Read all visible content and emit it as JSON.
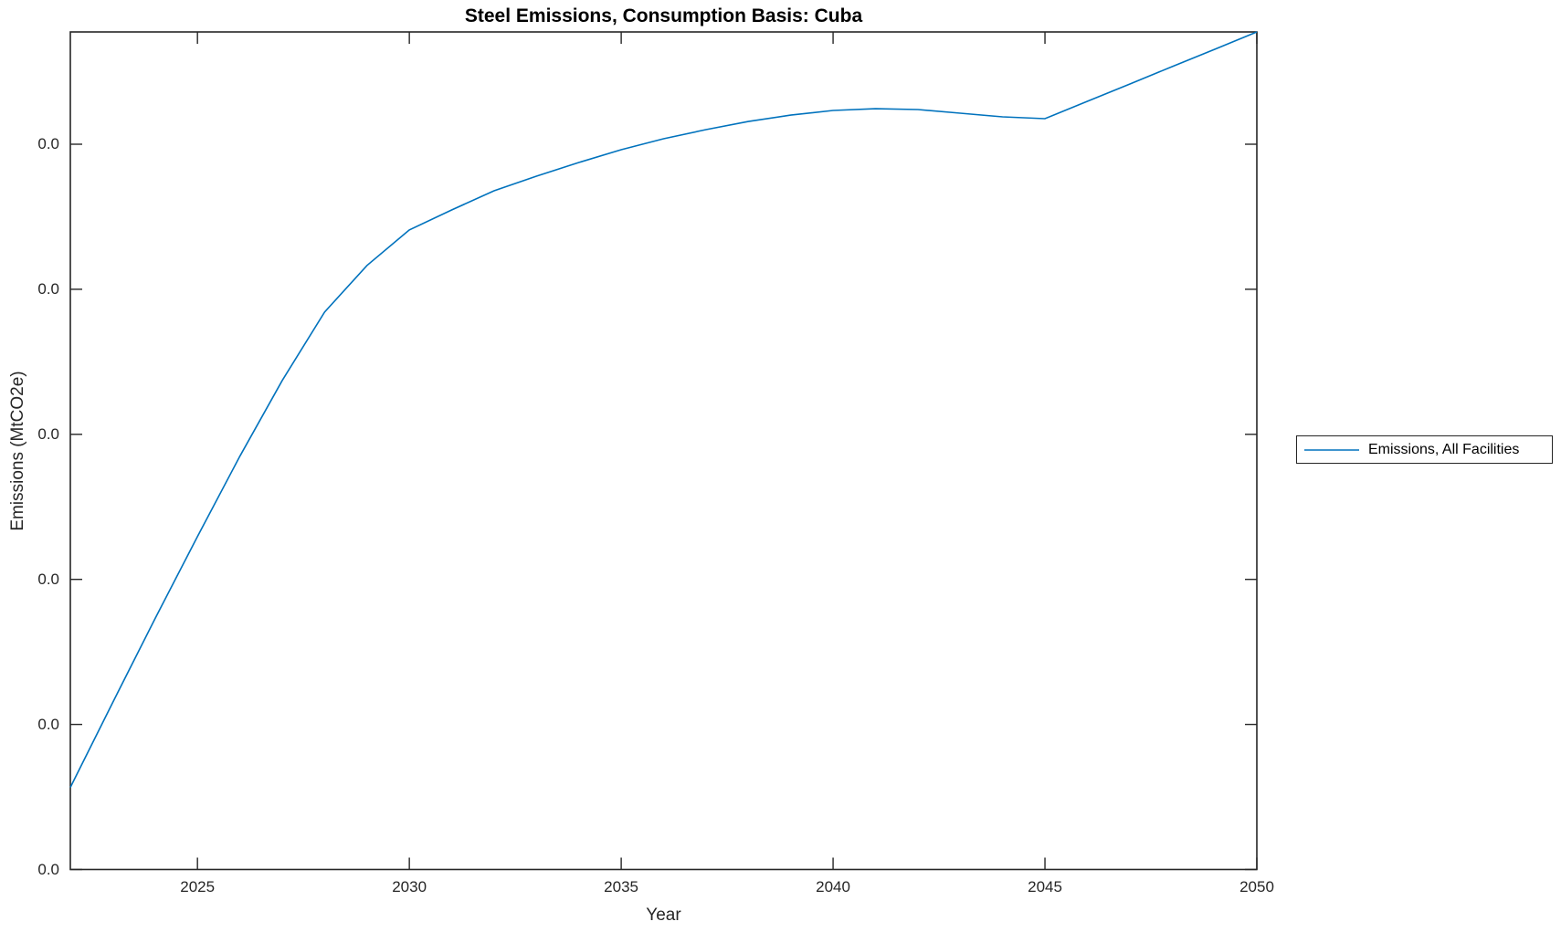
{
  "chart_data": {
    "type": "line",
    "title": "Steel Emissions, Consumption Basis: Cuba",
    "xlabel": "Year",
    "ylabel": "Emissions (MtCO2e)",
    "xlim": [
      2022,
      2050
    ],
    "ylim_units": [
      0,
      5.774
    ],
    "grid": false,
    "units_note": "relative axis units; every y tick label displays 0.0",
    "x_ticks": {
      "values": [
        2025,
        2030,
        2035,
        2040,
        2045,
        2050
      ],
      "labels": [
        "2025",
        "2030",
        "2035",
        "2040",
        "2045",
        "2050"
      ]
    },
    "y_ticks": {
      "positions_units": [
        0,
        1,
        2,
        3,
        4,
        5
      ],
      "labels": [
        "0.0",
        "0.0",
        "0.0",
        "0.0",
        "0.0",
        "0.0"
      ]
    },
    "legend": {
      "position": "right-outside",
      "entries": [
        {
          "label": "Emissions, All Facilities",
          "color": "#0072BD"
        }
      ]
    },
    "series": [
      {
        "name": "Emissions, All Facilities",
        "color": "#0072BD",
        "x": [
          2022,
          2023,
          2024,
          2025,
          2026,
          2027,
          2028,
          2029,
          2030,
          2031,
          2032,
          2033,
          2034,
          2035,
          2036,
          2037,
          2038,
          2039,
          2040,
          2041,
          2042,
          2043,
          2044,
          2045,
          2046,
          2047,
          2048,
          2049,
          2050
        ],
        "y_units": [
          0.566,
          1.151,
          1.73,
          2.296,
          2.849,
          3.371,
          3.843,
          4.164,
          4.409,
          4.547,
          4.679,
          4.78,
          4.874,
          4.962,
          5.038,
          5.101,
          5.157,
          5.201,
          5.233,
          5.245,
          5.239,
          5.214,
          5.189,
          5.176,
          5.296,
          5.415,
          5.535,
          5.654,
          5.774
        ]
      }
    ],
    "axis_color": "#262626"
  }
}
